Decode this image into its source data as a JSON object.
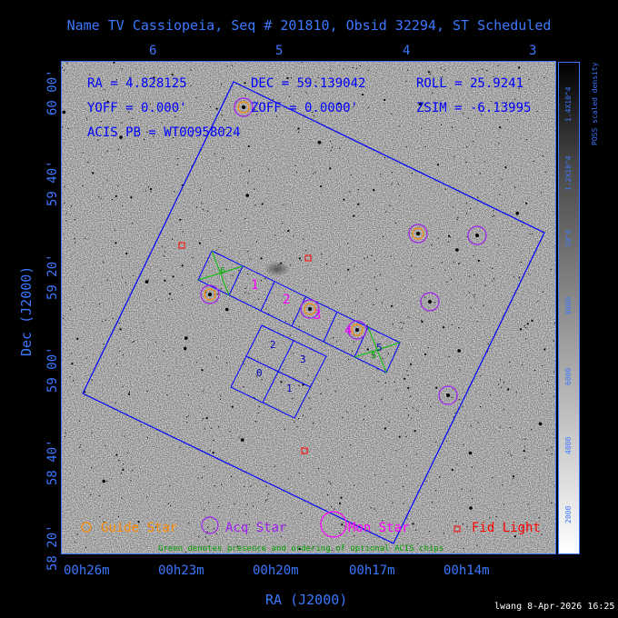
{
  "title": "Name TV Cassiopeia, Seq # 201810, Obsid 32294, ST Scheduled",
  "top_ticks": [
    "6",
    "5",
    "4",
    "3"
  ],
  "bottom_ticks": [
    "00h26m",
    "00h23m",
    "00h20m",
    "00h17m",
    "00h14m"
  ],
  "left_ticks": [
    "60 00'",
    "59 40'",
    "59 20'",
    "59 00'",
    "58 40'",
    "58 20'"
  ],
  "xlabel": "RA (J2000)",
  "ylabel": "Dec (J2000)",
  "params": {
    "ra": "RA = 4.828125",
    "dec": "DEC = 59.139042",
    "roll": "ROLL = 25.9241",
    "yoff": "YOFF =   0.000'",
    "zoff": "ZOFF =   0.0000'",
    "zsim": "ZSIM = -6.13995",
    "acis_pb": "ACIS PB = WT00958024"
  },
  "chip_numbers": [
    "0",
    "1",
    "2",
    "3",
    "1",
    "2",
    "3",
    "4",
    "5"
  ],
  "optional_chip_numbers": [
    "6",
    "5"
  ],
  "legend": {
    "guide": "Guide Star",
    "acq": "Acq Star",
    "mon": "Mon Star",
    "fid": "Fid Light",
    "note": "Green denotes presence and ordering of optional ACIS chips"
  },
  "colorbar": {
    "label": "POSS scaled density",
    "ticks": [
      "2000",
      "4000",
      "6000",
      "8000",
      "10^4",
      "1.2X10^4",
      "1.4X10^4"
    ]
  },
  "footer": "lwang  8-Apr-2026 16:25",
  "colors": {
    "axis_text": "#3c78ff",
    "guide": "#ff8c00",
    "acq": "#a020f0",
    "mon": "#ff00ff",
    "fid": "#ff0000",
    "optional": "#00c000",
    "frame": "#0000ff"
  }
}
